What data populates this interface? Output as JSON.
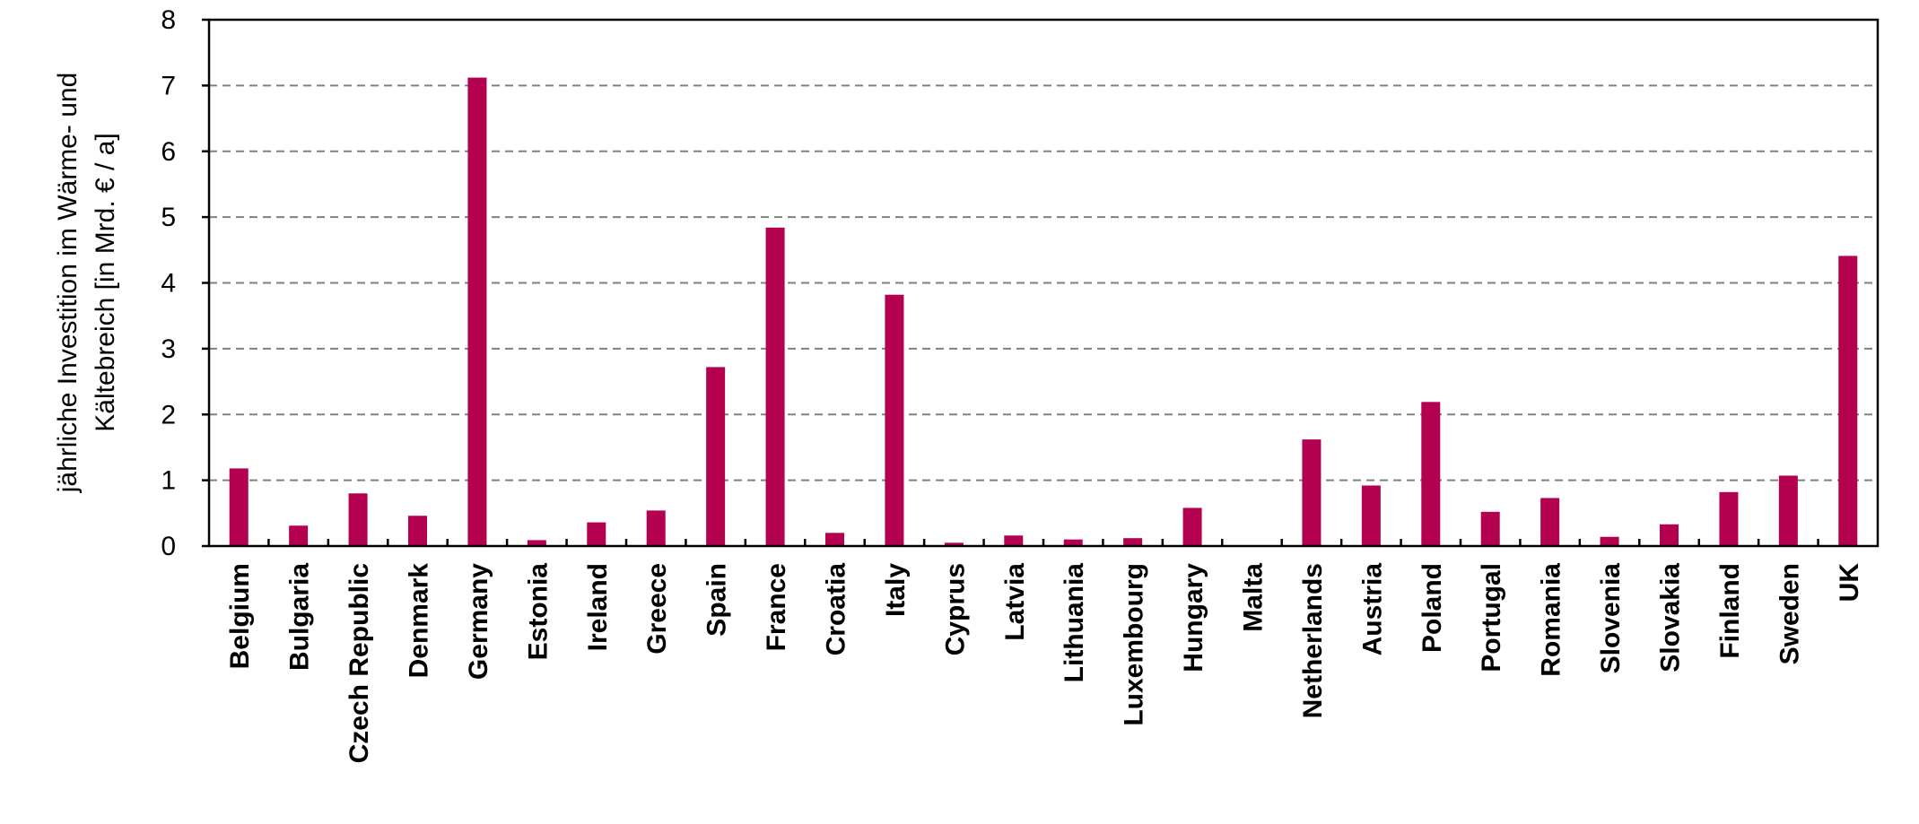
{
  "chart_data": {
    "type": "bar",
    "title": "",
    "xlabel": "",
    "ylabel_lines": [
      "jährliche Investition im Wärme- und",
      "Kältebreich [in Mrd. € / a]"
    ],
    "ylim": [
      0,
      8
    ],
    "yticks": [
      0,
      1,
      2,
      3,
      4,
      5,
      6,
      7,
      8
    ],
    "grid": "horizontal dashed",
    "categories": [
      "Belgium",
      "Bulgaria",
      "Czech Republic",
      "Denmark",
      "Germany",
      "Estonia",
      "Ireland",
      "Greece",
      "Spain",
      "France",
      "Croatia",
      "Italy",
      "Cyprus",
      "Latvia",
      "Lithuania",
      "Luxembourg",
      "Hungary",
      "Malta",
      "Netherlands",
      "Austria",
      "Poland",
      "Portugal",
      "Romania",
      "Slovenia",
      "Slovakia",
      "Finland",
      "Sweden",
      "UK"
    ],
    "values": [
      1.18,
      0.31,
      0.8,
      0.46,
      7.12,
      0.09,
      0.36,
      0.54,
      2.72,
      4.84,
      0.2,
      3.82,
      0.05,
      0.16,
      0.1,
      0.12,
      0.58,
      0.0,
      1.62,
      0.92,
      2.19,
      0.52,
      0.73,
      0.14,
      0.33,
      0.82,
      1.07,
      4.41
    ],
    "bar_color": "#b3004f",
    "grid_color": "#808080",
    "axis_color": "#000000"
  }
}
